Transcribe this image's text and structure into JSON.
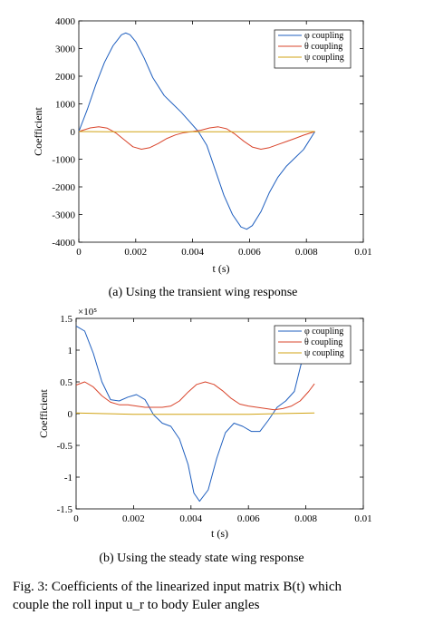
{
  "figure_caption": {
    "line1": "Fig. 3: Coefficients of the linearized input matrix B(t) which",
    "line2": "couple the roll input u_r to body Euler angles"
  },
  "chart_data": [
    {
      "type": "line",
      "caption": "(a) Using the transient wing response",
      "xlabel": "t (s)",
      "ylabel": "Coefficient",
      "xlim": [
        0,
        0.01
      ],
      "ylim": [
        -4000,
        4000
      ],
      "xticks": [
        "0",
        "0.002",
        "0.004",
        "0.006",
        "0.008",
        "0.01"
      ],
      "yticks": [
        "4000",
        "3000",
        "2000",
        "1000",
        "0",
        "-1000",
        "-2000",
        "-3000",
        "-4000"
      ],
      "ytick_values": [
        4000,
        3000,
        2000,
        1000,
        0,
        -1000,
        -2000,
        -3000,
        -4000
      ],
      "xtick_values": [
        0,
        0.002,
        0.004,
        0.006,
        0.008,
        0.01
      ],
      "exponent_label": "",
      "legend": "top-right",
      "grid": false,
      "series": [
        {
          "name": "φ coupling",
          "color": "#1f5fbf",
          "x": [
            0,
            0.0003,
            0.0006,
            0.0009,
            0.0012,
            0.0015,
            0.00165,
            0.0018,
            0.002,
            0.0023,
            0.0026,
            0.003,
            0.0033,
            0.0036,
            0.0039,
            0.0042,
            0.0045,
            0.0048,
            0.0051,
            0.0054,
            0.0057,
            0.0059,
            0.0061,
            0.0064,
            0.0067,
            0.007,
            0.0073,
            0.0076,
            0.0079,
            0.0083
          ],
          "y": [
            0,
            800,
            1700,
            2500,
            3100,
            3500,
            3560,
            3500,
            3250,
            2650,
            1950,
            1300,
            1000,
            700,
            350,
            0,
            -500,
            -1400,
            -2300,
            -3000,
            -3450,
            -3530,
            -3400,
            -2900,
            -2200,
            -1650,
            -1250,
            -950,
            -650,
            0
          ]
        },
        {
          "name": "θ coupling",
          "color": "#d9442b",
          "x": [
            0,
            0.0004,
            0.0007,
            0.001,
            0.0013,
            0.0016,
            0.0019,
            0.0022,
            0.0025,
            0.0028,
            0.0031,
            0.0034,
            0.0037,
            0.004,
            0.0043,
            0.0046,
            0.0049,
            0.0052,
            0.0055,
            0.0058,
            0.0061,
            0.0064,
            0.0067,
            0.007,
            0.0073,
            0.0076,
            0.0079,
            0.0083
          ],
          "y": [
            0,
            130,
            170,
            120,
            -50,
            -300,
            -550,
            -640,
            -580,
            -430,
            -250,
            -120,
            -40,
            0,
            50,
            130,
            170,
            100,
            -100,
            -350,
            -560,
            -640,
            -580,
            -470,
            -360,
            -250,
            -130,
            0
          ]
        },
        {
          "name": "ψ coupling",
          "color": "#d1a314",
          "x": [
            0,
            0.001,
            0.002,
            0.003,
            0.004,
            0.005,
            0.006,
            0.007,
            0.0083
          ],
          "y": [
            0,
            -5,
            -10,
            -8,
            -5,
            -8,
            -10,
            -5,
            0
          ]
        }
      ]
    },
    {
      "type": "line",
      "caption": "(b) Using the steady state wing response",
      "xlabel": "t (s)",
      "ylabel": "Coefficient",
      "xlim": [
        0,
        0.01
      ],
      "ylim": [
        -1.5,
        1.5
      ],
      "xticks": [
        "0",
        "0.002",
        "0.004",
        "0.006",
        "0.008",
        "0.01"
      ],
      "yticks": [
        "1.5",
        "1",
        "0.5",
        "0",
        "-0.5",
        "-1",
        "-1.5"
      ],
      "ytick_values": [
        1.5,
        1,
        0.5,
        0,
        -0.5,
        -1,
        -1.5
      ],
      "xtick_values": [
        0,
        0.002,
        0.004,
        0.006,
        0.008,
        0.01
      ],
      "exponent_label": "×10⁵",
      "legend": "top-right",
      "grid": false,
      "series": [
        {
          "name": "φ coupling",
          "color": "#1f5fbf",
          "x": [
            0,
            0.0003,
            0.0006,
            0.0009,
            0.0012,
            0.0015,
            0.0018,
            0.0021,
            0.0024,
            0.0027,
            0.003,
            0.0033,
            0.0036,
            0.0039,
            0.0041,
            0.0043,
            0.0046,
            0.0049,
            0.0052,
            0.0055,
            0.0058,
            0.0061,
            0.0064,
            0.0067,
            0.007,
            0.0073,
            0.0076,
            0.0079,
            0.0083
          ],
          "y": [
            1.38,
            1.3,
            0.95,
            0.5,
            0.22,
            0.2,
            0.26,
            0.3,
            0.22,
            -0.02,
            -0.15,
            -0.2,
            -0.4,
            -0.8,
            -1.25,
            -1.38,
            -1.2,
            -0.7,
            -0.3,
            -0.15,
            -0.2,
            -0.28,
            -0.28,
            -0.1,
            0.1,
            0.2,
            0.35,
            0.9,
            1.38
          ]
        },
        {
          "name": "θ coupling",
          "color": "#d9442b",
          "x": [
            0,
            0.0003,
            0.0006,
            0.0009,
            0.0012,
            0.0015,
            0.0018,
            0.0021,
            0.0024,
            0.0027,
            0.003,
            0.0033,
            0.0036,
            0.0039,
            0.0042,
            0.0045,
            0.0048,
            0.0051,
            0.0054,
            0.0057,
            0.006,
            0.0063,
            0.0066,
            0.0069,
            0.0072,
            0.0075,
            0.0078,
            0.0081,
            0.0083
          ],
          "y": [
            0.45,
            0.5,
            0.42,
            0.28,
            0.18,
            0.14,
            0.14,
            0.12,
            0.1,
            0.1,
            0.1,
            0.12,
            0.2,
            0.34,
            0.46,
            0.5,
            0.46,
            0.36,
            0.24,
            0.15,
            0.12,
            0.1,
            0.08,
            0.06,
            0.08,
            0.12,
            0.2,
            0.35,
            0.47
          ]
        },
        {
          "name": "ψ coupling",
          "color": "#d1a314",
          "x": [
            0,
            0.001,
            0.002,
            0.003,
            0.004,
            0.005,
            0.006,
            0.007,
            0.0083
          ],
          "y": [
            0.01,
            0.0,
            -0.01,
            -0.01,
            -0.01,
            -0.01,
            -0.01,
            0.0,
            0.01
          ]
        }
      ]
    }
  ]
}
